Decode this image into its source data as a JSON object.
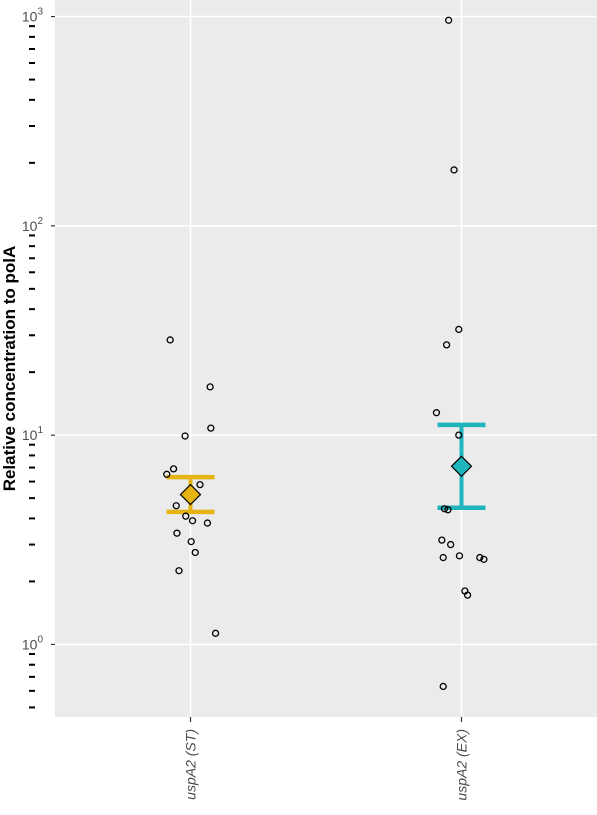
{
  "chart_data": {
    "type": "scatter",
    "ylabel": "Relative concentration to polA",
    "xlabel": "",
    "y_scale": "log10",
    "ylim": [
      0.45,
      1200
    ],
    "y_ticks": [
      {
        "value": 1,
        "base": "10",
        "exp": "0"
      },
      {
        "value": 10,
        "base": "10",
        "exp": "1"
      },
      {
        "value": 100,
        "base": "10",
        "exp": "2"
      },
      {
        "value": 1000,
        "base": "10",
        "exp": "3"
      }
    ],
    "grid": true,
    "background": "#ebebeb",
    "categories": [
      "uspA2 (ST)",
      "uspA2 (EX)"
    ],
    "groups": [
      {
        "category": "uspA2 (ST)",
        "color": "#e6b412",
        "points": [
          28.5,
          17.0,
          10.8,
          9.9,
          6.9,
          6.5,
          5.8,
          4.6,
          4.1,
          3.9,
          3.8,
          3.4,
          3.1,
          2.75,
          2.25,
          1.13
        ],
        "point_jitter": [
          -0.3,
          0.29,
          0.3,
          -0.08,
          -0.25,
          -0.35,
          0.14,
          -0.21,
          -0.07,
          0.03,
          0.25,
          -0.2,
          0.01,
          0.07,
          -0.17,
          0.37
        ],
        "mean": 5.2,
        "ci_low": 4.3,
        "ci_high": 6.3
      },
      {
        "category": "uspA2 (EX)",
        "color": "#1fb5bd",
        "points": [
          960,
          185,
          32,
          27,
          12.8,
          10.0,
          4.45,
          4.4,
          3.15,
          3.0,
          2.65,
          2.6,
          2.6,
          2.55,
          1.8,
          1.72,
          0.63
        ],
        "point_jitter": [
          -0.19,
          -0.11,
          -0.04,
          -0.22,
          -0.37,
          -0.04,
          -0.25,
          -0.2,
          -0.29,
          -0.16,
          -0.03,
          -0.27,
          0.27,
          0.33,
          0.05,
          0.09,
          -0.27
        ],
        "mean": 7.1,
        "ci_low": 4.5,
        "ci_high": 11.2
      }
    ]
  }
}
